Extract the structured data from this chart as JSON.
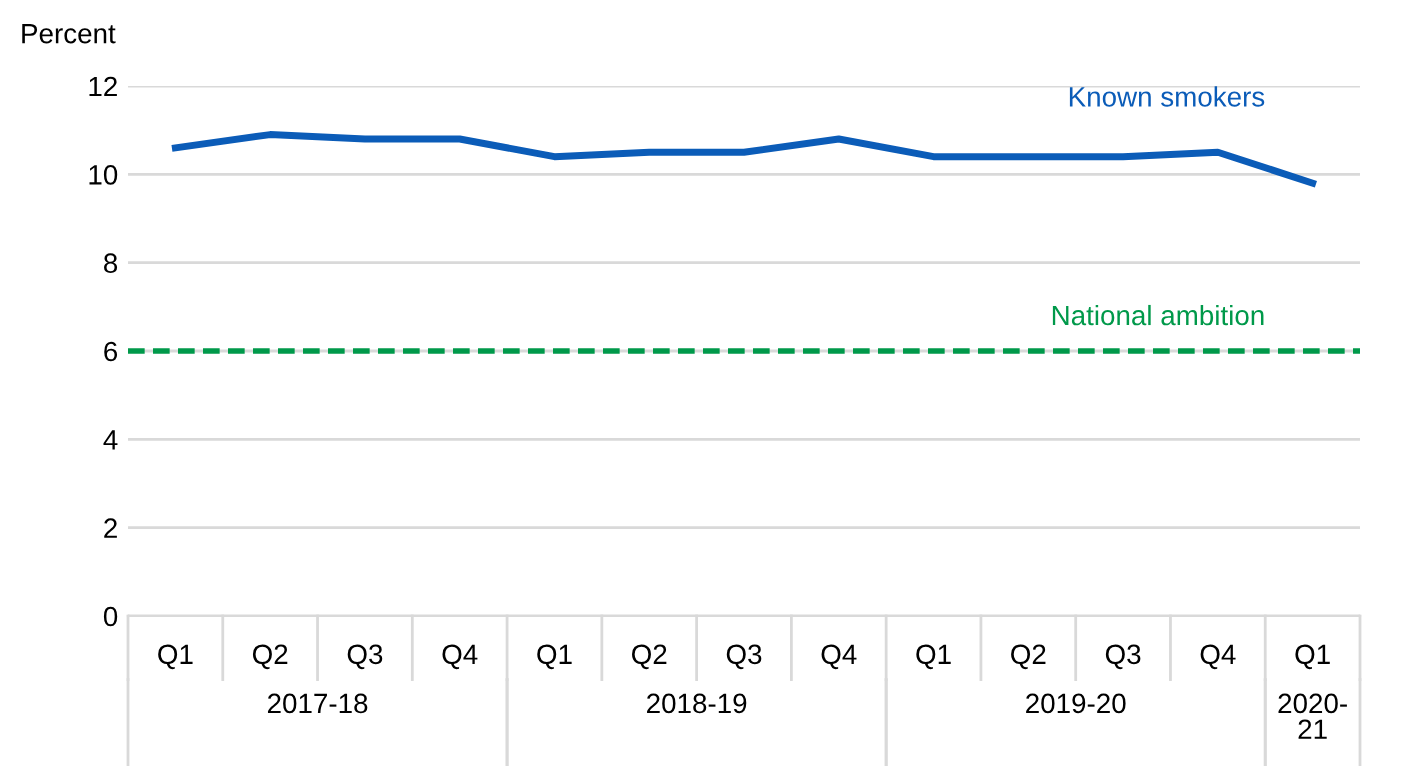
{
  "chart_data": {
    "type": "line",
    "ylabel": "Percent",
    "categories": [
      "Q1",
      "Q2",
      "Q3",
      "Q4",
      "Q1",
      "Q2",
      "Q3",
      "Q4",
      "Q1",
      "Q2",
      "Q3",
      "Q4",
      "Q1"
    ],
    "series": [
      {
        "name": "Known smokers",
        "color": "#0b5cb8",
        "values": [
          10.6,
          10.9,
          10.8,
          10.8,
          10.4,
          10.5,
          10.5,
          10.8,
          10.4,
          10.4,
          10.4,
          10.5,
          9.8
        ]
      }
    ],
    "ref_lines": [
      {
        "axis": "y",
        "value": 6,
        "label": "National ambition",
        "color": "#00994a",
        "line_style": "dashed"
      }
    ],
    "annotations": [
      "2017-18",
      "2018-19",
      "2019-20",
      "2020-\n21"
    ],
    "ylim": [
      0,
      12
    ],
    "yticks": [
      0,
      2,
      4,
      6,
      8,
      10,
      12
    ],
    "grid": "y",
    "legend": false,
    "marker": "none",
    "line_style": "solid"
  }
}
